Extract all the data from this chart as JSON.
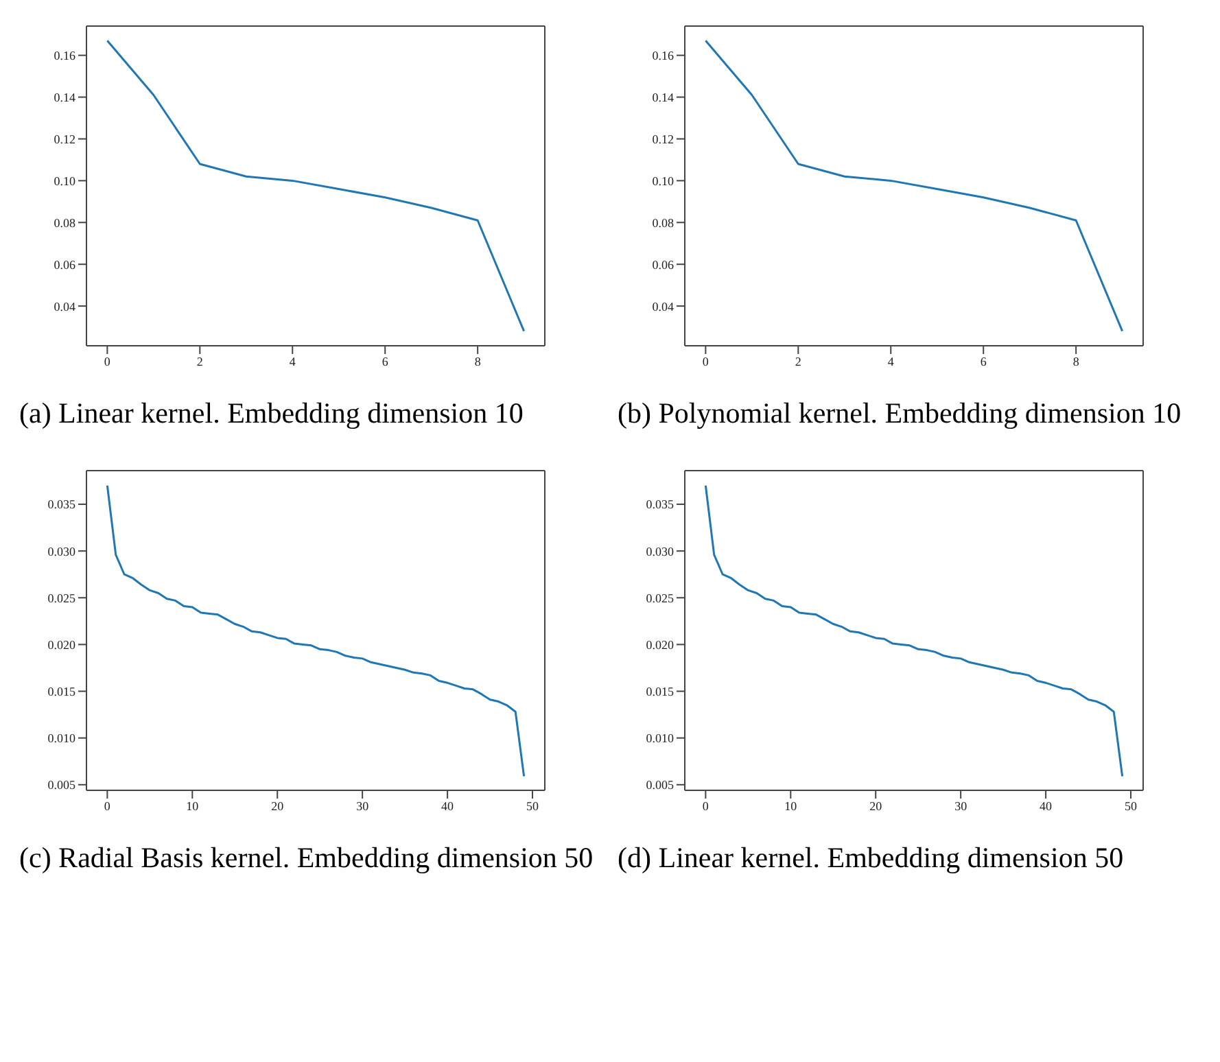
{
  "chart_data": [
    {
      "type": "line",
      "x": [
        0,
        1,
        2,
        3,
        4,
        5,
        6,
        7,
        8,
        9
      ],
      "series": [
        {
          "color": "#1f77b4",
          "values": [
            0.167,
            0.141,
            0.108,
            0.102,
            0.1,
            0.096,
            0.092,
            0.087,
            0.081,
            0.028
          ]
        }
      ],
      "xlim": [
        -0.45,
        9.45
      ],
      "xticks": [
        0,
        2,
        4,
        6,
        8
      ],
      "ylim": [
        0.021,
        0.174
      ],
      "yticks": [
        {
          "value": 0.04,
          "label": "0.04"
        },
        {
          "value": 0.06,
          "label": "0.06"
        },
        {
          "value": 0.08,
          "label": "0.08"
        },
        {
          "value": 0.1,
          "label": "0.10"
        },
        {
          "value": 0.12,
          "label": "0.12"
        },
        {
          "value": 0.14,
          "label": "0.14"
        },
        {
          "value": 0.16,
          "label": "0.16"
        }
      ],
      "grid": false,
      "legend": false,
      "marker": "none",
      "annotations": [
        "(a) Linear kernel. Embedding dimension 10"
      ]
    },
    {
      "type": "line",
      "x": [
        0,
        1,
        2,
        3,
        4,
        5,
        6,
        7,
        8,
        9
      ],
      "series": [
        {
          "color": "#1f77b4",
          "values": [
            0.167,
            0.141,
            0.108,
            0.102,
            0.1,
            0.096,
            0.092,
            0.087,
            0.081,
            0.028
          ]
        }
      ],
      "xlim": [
        -0.45,
        9.45
      ],
      "xticks": [
        0,
        2,
        4,
        6,
        8
      ],
      "ylim": [
        0.021,
        0.174
      ],
      "yticks": [
        {
          "value": 0.04,
          "label": "0.04"
        },
        {
          "value": 0.06,
          "label": "0.06"
        },
        {
          "value": 0.08,
          "label": "0.08"
        },
        {
          "value": 0.1,
          "label": "0.10"
        },
        {
          "value": 0.12,
          "label": "0.12"
        },
        {
          "value": 0.14,
          "label": "0.14"
        },
        {
          "value": 0.16,
          "label": "0.16"
        }
      ],
      "grid": false,
      "legend": false,
      "marker": "none",
      "annotations": [
        "(b) Polynomial kernel. Embedding dimension 10"
      ]
    },
    {
      "type": "line",
      "x": [
        0,
        1,
        2,
        3,
        4,
        5,
        6,
        7,
        8,
        9,
        10,
        11,
        12,
        13,
        14,
        15,
        16,
        17,
        18,
        19,
        20,
        21,
        22,
        23,
        24,
        25,
        26,
        27,
        28,
        29,
        30,
        31,
        32,
        33,
        34,
        35,
        36,
        37,
        38,
        39,
        40,
        41,
        42,
        43,
        44,
        45,
        46,
        47,
        48,
        49
      ],
      "series": [
        {
          "color": "#1f77b4",
          "values": [
            0.037,
            0.0296,
            0.0275,
            0.0271,
            0.0264,
            0.0258,
            0.0255,
            0.0249,
            0.0247,
            0.0241,
            0.024,
            0.0234,
            0.0233,
            0.0232,
            0.0227,
            0.0222,
            0.0219,
            0.0214,
            0.0213,
            0.021,
            0.0207,
            0.0206,
            0.0201,
            0.02,
            0.0199,
            0.0195,
            0.0194,
            0.0192,
            0.0188,
            0.0186,
            0.0185,
            0.0181,
            0.0179,
            0.0177,
            0.0175,
            0.0173,
            0.017,
            0.0169,
            0.0167,
            0.0161,
            0.0159,
            0.0156,
            0.0153,
            0.0152,
            0.0147,
            0.0141,
            0.0139,
            0.0135,
            0.0128,
            0.0059
          ]
        }
      ],
      "xlim": [
        -2.45,
        51.45
      ],
      "xticks": [
        0,
        10,
        20,
        30,
        40,
        50
      ],
      "ylim": [
        0.0044,
        0.0386
      ],
      "yticks": [
        {
          "value": 0.005,
          "label": "0.005"
        },
        {
          "value": 0.01,
          "label": "0.010"
        },
        {
          "value": 0.015,
          "label": "0.015"
        },
        {
          "value": 0.02,
          "label": "0.020"
        },
        {
          "value": 0.025,
          "label": "0.025"
        },
        {
          "value": 0.03,
          "label": "0.030"
        },
        {
          "value": 0.035,
          "label": "0.035"
        }
      ],
      "grid": false,
      "legend": false,
      "marker": "none",
      "annotations": [
        "(c) Radial Basis kernel. Embedding dimension 50"
      ]
    },
    {
      "type": "line",
      "x": [
        0,
        1,
        2,
        3,
        4,
        5,
        6,
        7,
        8,
        9,
        10,
        11,
        12,
        13,
        14,
        15,
        16,
        17,
        18,
        19,
        20,
        21,
        22,
        23,
        24,
        25,
        26,
        27,
        28,
        29,
        30,
        31,
        32,
        33,
        34,
        35,
        36,
        37,
        38,
        39,
        40,
        41,
        42,
        43,
        44,
        45,
        46,
        47,
        48,
        49
      ],
      "series": [
        {
          "color": "#1f77b4",
          "values": [
            0.037,
            0.0296,
            0.0275,
            0.0271,
            0.0264,
            0.0258,
            0.0255,
            0.0249,
            0.0247,
            0.0241,
            0.024,
            0.0234,
            0.0233,
            0.0232,
            0.0227,
            0.0222,
            0.0219,
            0.0214,
            0.0213,
            0.021,
            0.0207,
            0.0206,
            0.0201,
            0.02,
            0.0199,
            0.0195,
            0.0194,
            0.0192,
            0.0188,
            0.0186,
            0.0185,
            0.0181,
            0.0179,
            0.0177,
            0.0175,
            0.0173,
            0.017,
            0.0169,
            0.0167,
            0.0161,
            0.0159,
            0.0156,
            0.0153,
            0.0152,
            0.0147,
            0.0141,
            0.0139,
            0.0135,
            0.0128,
            0.0059
          ]
        }
      ],
      "xlim": [
        -2.45,
        51.45
      ],
      "xticks": [
        0,
        10,
        20,
        30,
        40,
        50
      ],
      "ylim": [
        0.0044,
        0.0386
      ],
      "yticks": [
        {
          "value": 0.005,
          "label": "0.005"
        },
        {
          "value": 0.01,
          "label": "0.010"
        },
        {
          "value": 0.015,
          "label": "0.015"
        },
        {
          "value": 0.02,
          "label": "0.020"
        },
        {
          "value": 0.025,
          "label": "0.025"
        },
        {
          "value": 0.03,
          "label": "0.030"
        },
        {
          "value": 0.035,
          "label": "0.035"
        }
      ],
      "grid": false,
      "legend": false,
      "marker": "none",
      "annotations": [
        "(d) Linear kernel. Embedding dimension 50"
      ]
    }
  ]
}
